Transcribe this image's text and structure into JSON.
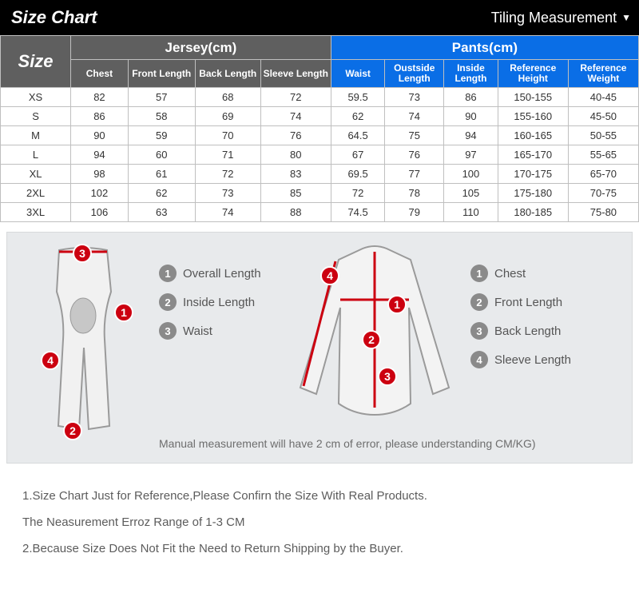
{
  "header": {
    "title": "Size Chart",
    "measurement_toggle": "Tiling Measurement"
  },
  "table": {
    "size_label": "Size",
    "groups": [
      {
        "label": "Jersey(cm)",
        "style": "gray",
        "subcols": [
          "Chest",
          "Front Length",
          "Back Length",
          "Sleeve Length"
        ]
      },
      {
        "label": "Pants(cm)",
        "style": "blue",
        "subcols": [
          "Waist",
          "Oustside Length",
          "Inside Length",
          "Reference Height",
          "Reference Weight"
        ]
      }
    ],
    "rows": [
      {
        "size": "XS",
        "vals": [
          "82",
          "57",
          "68",
          "72",
          "59.5",
          "73",
          "86",
          "150-155",
          "40-45"
        ]
      },
      {
        "size": "S",
        "vals": [
          "86",
          "58",
          "69",
          "74",
          "62",
          "74",
          "90",
          "155-160",
          "45-50"
        ]
      },
      {
        "size": "M",
        "vals": [
          "90",
          "59",
          "70",
          "76",
          "64.5",
          "75",
          "94",
          "160-165",
          "50-55"
        ]
      },
      {
        "size": "L",
        "vals": [
          "94",
          "60",
          "71",
          "80",
          "67",
          "76",
          "97",
          "165-170",
          "55-65"
        ]
      },
      {
        "size": "XL",
        "vals": [
          "98",
          "61",
          "72",
          "83",
          "69.5",
          "77",
          "100",
          "170-175",
          "65-70"
        ]
      },
      {
        "size": "2XL",
        "vals": [
          "102",
          "62",
          "73",
          "85",
          "72",
          "78",
          "105",
          "175-180",
          "70-75"
        ]
      },
      {
        "size": "3XL",
        "vals": [
          "106",
          "63",
          "74",
          "88",
          "74.5",
          "79",
          "110",
          "180-185",
          "75-80"
        ]
      }
    ]
  },
  "diagram": {
    "pants_legend": [
      {
        "n": "1",
        "label": "Overall Length"
      },
      {
        "n": "2",
        "label": "Inside Length"
      },
      {
        "n": "3",
        "label": "Waist"
      }
    ],
    "jersey_legend": [
      {
        "n": "1",
        "label": "Chest"
      },
      {
        "n": "2",
        "label": "Front Length"
      },
      {
        "n": "3",
        "label": "Back Length"
      },
      {
        "n": "4",
        "label": "Sleeve Length"
      }
    ],
    "manual_note": "Manual measurement will have 2 cm of error, please understanding CM/KG)",
    "colors": {
      "panel_bg": "#e8eaec",
      "badge_red": "#cc0010",
      "badge_gray": "#8a8a8a",
      "outline": "#9a9a9a"
    }
  },
  "footer": {
    "line1": "1.Size Chart Just for Reference,Please Confirn the Size With Real Products.",
    "line2": "The Neasurement Erroz Range of 1-3 CM",
    "line3": "2.Because Size Does Not Fit the Need to Return Shipping by the Buyer."
  }
}
